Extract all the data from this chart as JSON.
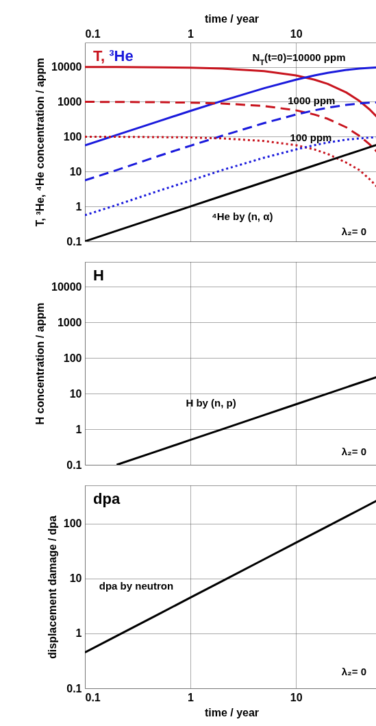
{
  "chart_data": [
    {
      "type": "line",
      "xlabel": "time / year",
      "ylabel": "T, ³He, ⁴He concentration / appm",
      "xlim": [
        0.1,
        60
      ],
      "xticks": [
        0.1,
        1,
        10
      ],
      "ylim": [
        0.1,
        50000
      ],
      "yticks": [
        0.1,
        1,
        10,
        100,
        1000,
        10000
      ],
      "log": "xy",
      "grid": true,
      "legend": "top left",
      "x": [
        0.1,
        0.2,
        0.5,
        1,
        2,
        5,
        10,
        15,
        20,
        30,
        40,
        50,
        60
      ],
      "series": [
        {
          "name": "T,",
          "color": "#c8141e",
          "line_style": "solid",
          "values": [
            9944,
            9888,
            9723,
            9453,
            8936,
            7548,
            5697,
            4300,
            3246,
            1849,
            1054,
            600,
            342
          ]
        },
        {
          "name": "³He",
          "color": "#1a1adc",
          "line_style": "solid",
          "values": [
            56,
            112,
            277,
            547,
            1064,
            2452,
            4303,
            5700,
            6754,
            8151,
            8946,
            9400,
            9658
          ]
        },
        {
          "color": "#c8141e",
          "line_style": "dashed",
          "values": [
            994,
            989,
            972,
            945,
            894,
            755,
            570,
            430,
            325,
            185,
            105,
            60,
            34
          ]
        },
        {
          "color": "#1a1adc",
          "line_style": "dashed",
          "values": [
            5.6,
            11,
            28,
            55,
            106,
            245,
            430,
            570,
            675,
            815,
            895,
            940,
            966
          ]
        },
        {
          "color": "#c8141e",
          "line_style": "dotted",
          "values": [
            99,
            99,
            97,
            95,
            89,
            75,
            57,
            43,
            32,
            18,
            11,
            6,
            3.4
          ]
        },
        {
          "color": "#1a1adc",
          "line_style": "dotted",
          "values": [
            0.56,
            1.1,
            2.8,
            5.5,
            11,
            25,
            43,
            57,
            68,
            82,
            89,
            94,
            97
          ]
        },
        {
          "color": "#000000",
          "line_style": "solid",
          "values": [
            0.1,
            0.2,
            0.5,
            1,
            2,
            5,
            10,
            15,
            20,
            30,
            40,
            50,
            60
          ]
        }
      ],
      "annotations": [
        "N$_{T}$(t=0)=10000 ppm",
        "1000 ppm",
        "100 ppm",
        "⁴He by (n, α)",
        "λ₂= 0"
      ]
    },
    {
      "type": "line",
      "title": "H",
      "ylabel": "H concentration / appm",
      "xlim": [
        0.1,
        60
      ],
      "xticks": [
        0.1,
        1,
        10
      ],
      "ylim": [
        0.1,
        50000
      ],
      "yticks": [
        0.1,
        1,
        10,
        100,
        1000,
        10000
      ],
      "log": "xy",
      "grid": true,
      "tick_labels": "y",
      "series": [
        {
          "color": "#000000",
          "line_style": "solid",
          "x": [
            0.2,
            0.5,
            1,
            2,
            5,
            10,
            20,
            40,
            60
          ],
          "values": [
            0.1,
            0.25,
            0.5,
            1,
            2.5,
            5,
            10,
            20,
            30
          ]
        }
      ],
      "annotations": [
        "H by (n, p)",
        "λ₂= 0"
      ]
    },
    {
      "type": "line",
      "title": "dpa",
      "xlabel": "time / year",
      "ylabel": "displacement damage / dpa",
      "xlim": [
        0.1,
        60
      ],
      "xticks": [
        0.1,
        1,
        10
      ],
      "ylim": [
        0.1,
        500
      ],
      "yticks": [
        0.1,
        1,
        10,
        100
      ],
      "log": "xy",
      "grid": true,
      "series": [
        {
          "color": "#000000",
          "line_style": "solid",
          "x": [
            0.1,
            0.2,
            0.5,
            1,
            2,
            5,
            10,
            20,
            40,
            60
          ],
          "values": [
            0.45,
            0.9,
            2.25,
            4.5,
            9,
            22.5,
            45,
            90,
            180,
            270
          ]
        }
      ],
      "annotations": [
        "dpa by neutron",
        "λ₂= 0"
      ]
    }
  ]
}
